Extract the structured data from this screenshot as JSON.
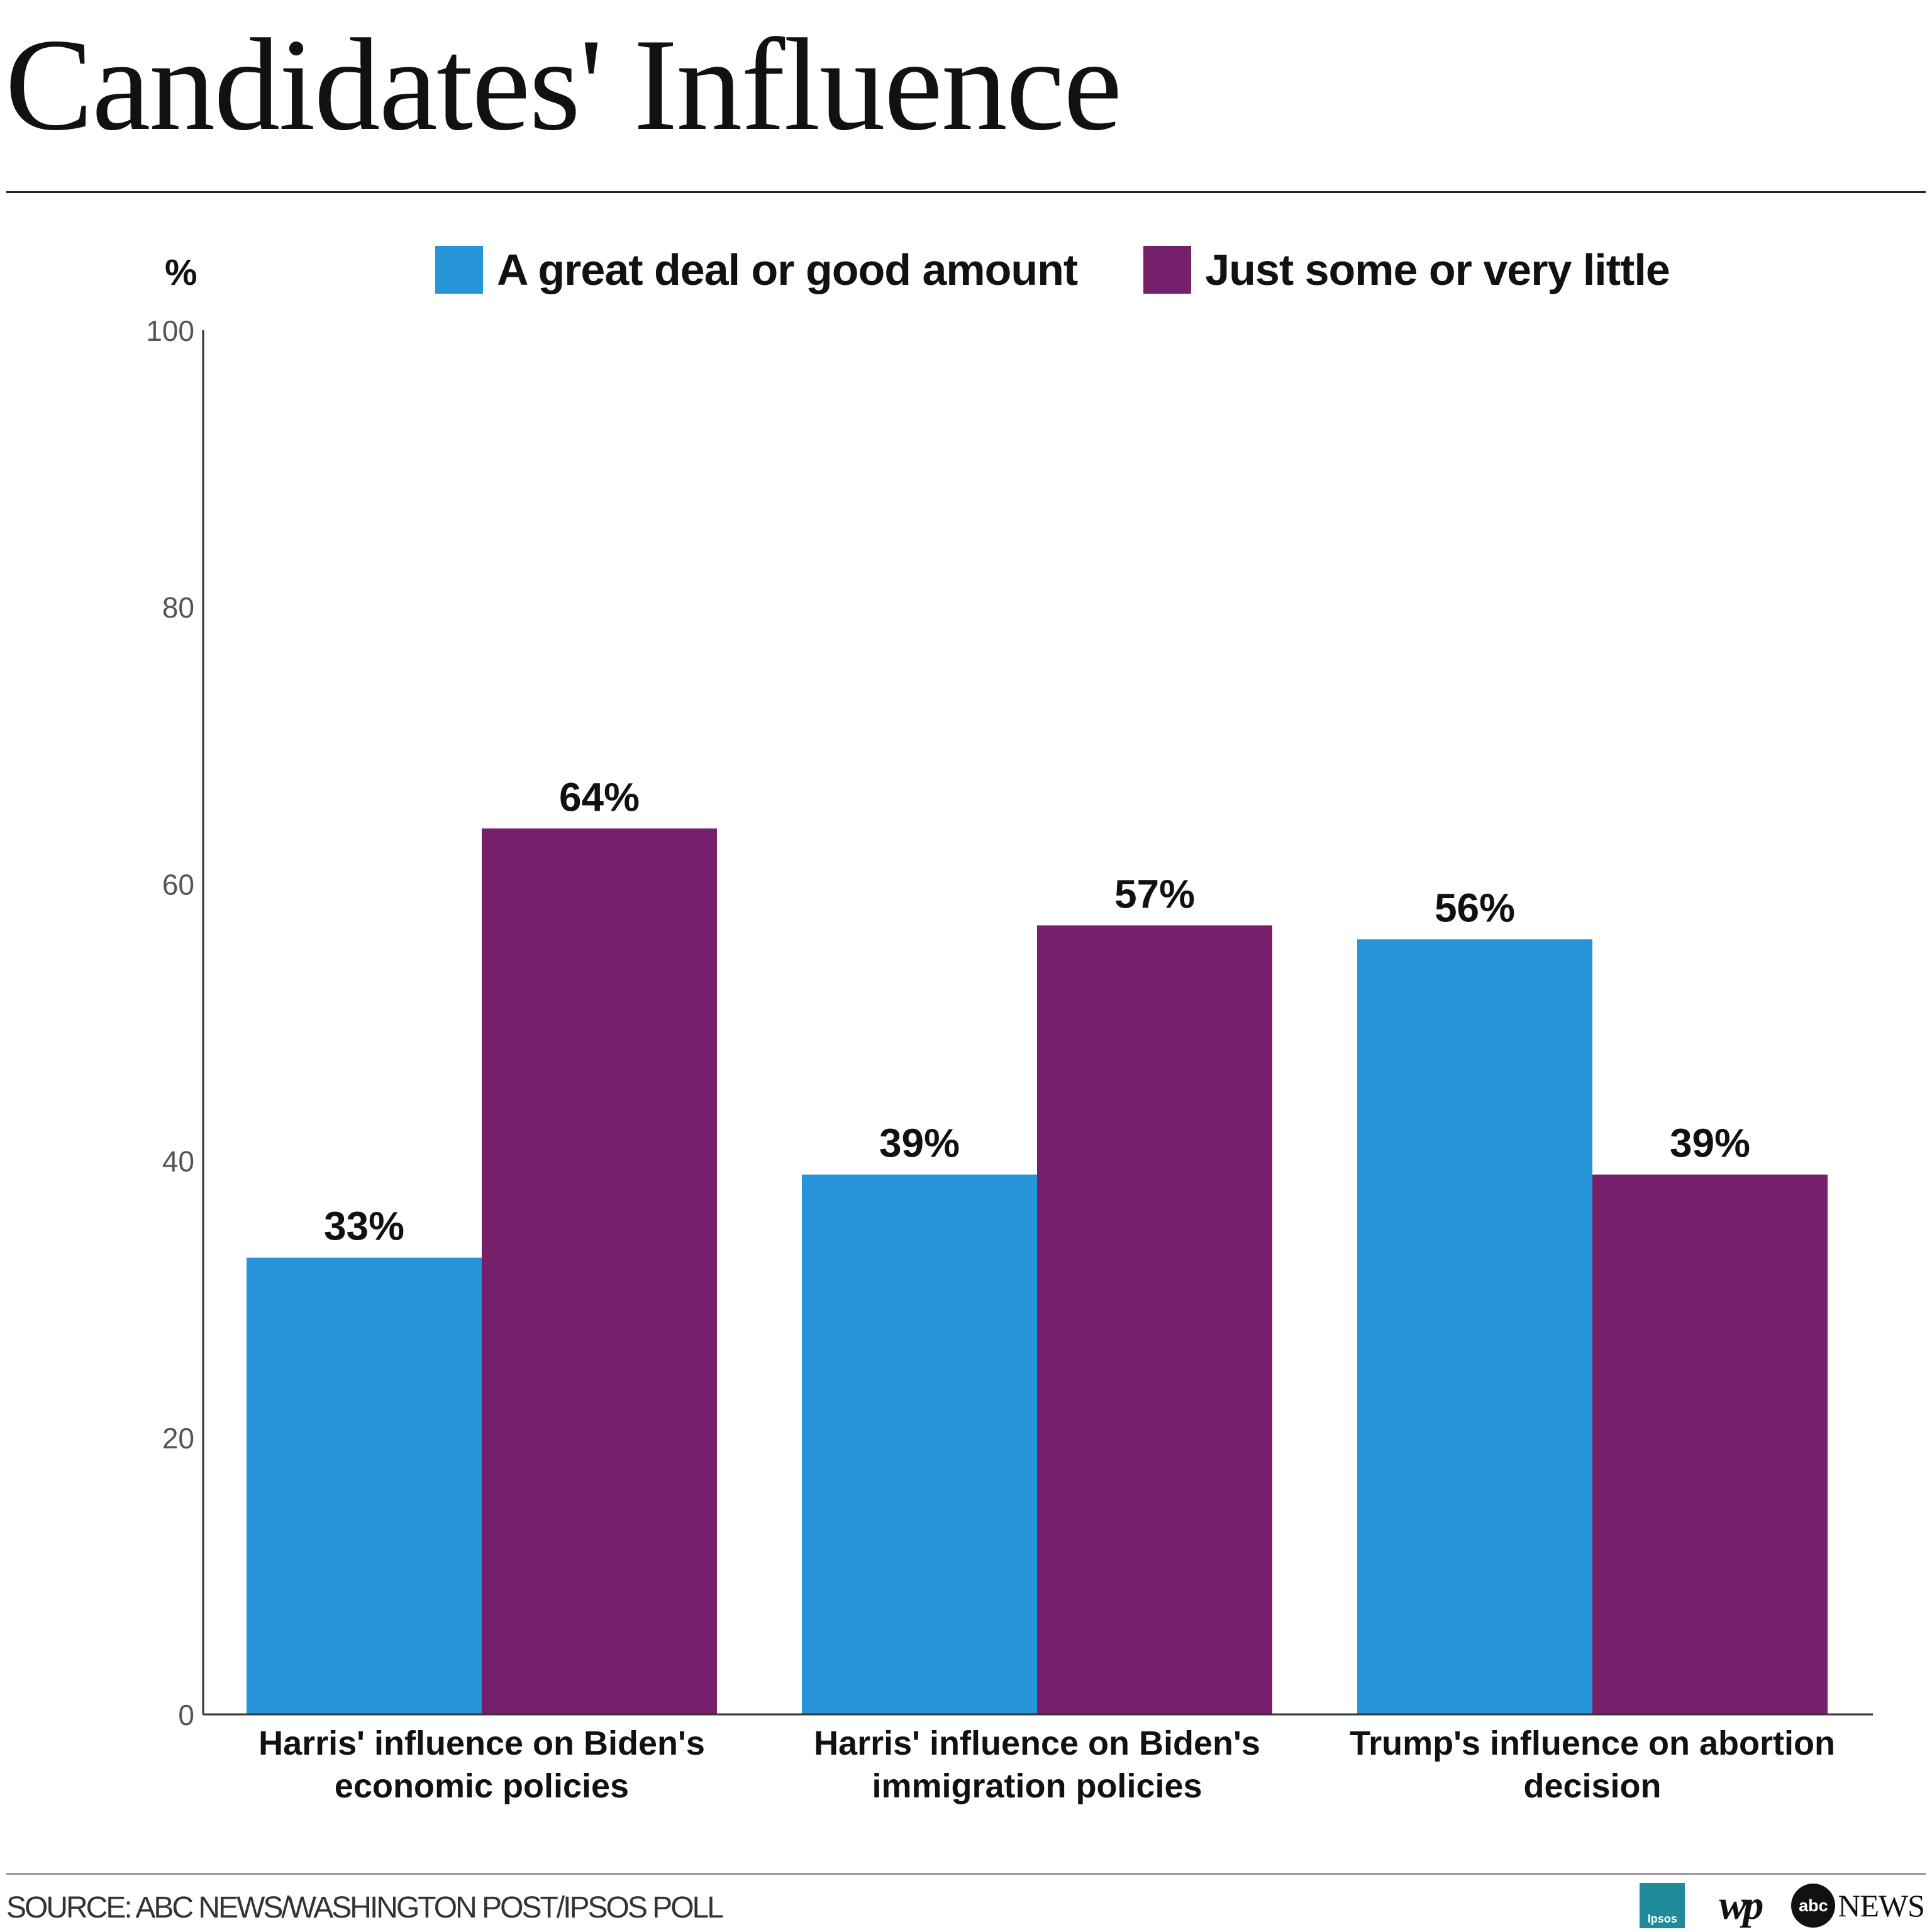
{
  "title": "Candidates' Influence",
  "unit_label": "%",
  "source": "SOURCE: ABC NEWS/WASHINGTON POST/IPSOS POLL",
  "logos": {
    "ipsos": "Ipsos",
    "wp": "wp",
    "abc": "abc",
    "abc_news": "NEWS"
  },
  "colors": {
    "great_deal": "#2594d8",
    "just_some": "#761f6b"
  },
  "chart_data": {
    "type": "bar",
    "categories": [
      [
        "Harris' influence on Biden's",
        "economic policies"
      ],
      [
        "Harris' influence on Biden's",
        "immigration policies"
      ],
      [
        "Trump's influence on abortion",
        "decision"
      ]
    ],
    "series": [
      {
        "name": "A great deal or good amount",
        "values": [
          33,
          39,
          56
        ],
        "labels": [
          "33%",
          "39%",
          "56%"
        ]
      },
      {
        "name": "Just some or very little",
        "values": [
          64,
          57,
          39
        ],
        "labels": [
          "64%",
          "57%",
          "39%"
        ]
      }
    ],
    "ylim": [
      0,
      100
    ],
    "yticks": [
      "0",
      "20",
      "40",
      "60",
      "80",
      "100"
    ],
    "ylabel": "%",
    "legend": "top",
    "grid": false
  }
}
